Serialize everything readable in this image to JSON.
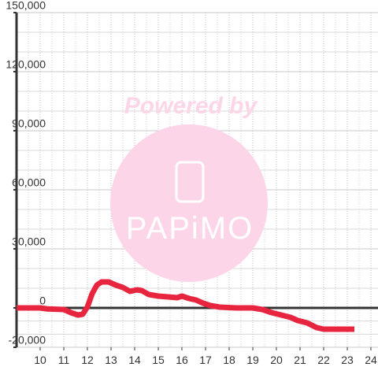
{
  "chart_data": {
    "type": "line",
    "watermark": {
      "top": "Powered by",
      "logo": "PAPiMO"
    },
    "xlim": [
      9,
      24.3
    ],
    "xticks": [
      10,
      11,
      12,
      13,
      14,
      15,
      16,
      17,
      18,
      19,
      20,
      21,
      22,
      23,
      24
    ],
    "ylim": [
      -20000,
      150000
    ],
    "yticks": [
      {
        "value": -20000,
        "label": "-20,000"
      },
      0,
      {
        "value": 30000,
        "label": "30,000"
      },
      {
        "value": 60000,
        "label": "60,000"
      },
      {
        "value": 90000,
        "label": "90,000"
      },
      {
        "value": 120000,
        "label": "120,000"
      },
      {
        "value": 150000,
        "label": "150,000"
      }
    ],
    "grid": true,
    "series": [
      {
        "color": "#e8253f",
        "x": [
          9.0,
          10.0,
          10.3,
          11.0,
          11.3,
          11.6,
          11.8,
          12.0,
          12.2,
          12.4,
          12.6,
          12.9,
          13.2,
          13.5,
          13.8,
          14.1,
          14.3,
          14.6,
          15.0,
          15.4,
          15.8,
          16.0,
          16.3,
          16.6,
          16.9,
          17.2,
          17.6,
          18.3,
          19.0,
          19.4,
          19.8,
          20.2,
          20.6,
          20.9,
          21.3,
          21.7,
          22.0,
          23.3
        ],
        "values": [
          0,
          0,
          -500,
          -800,
          -2400,
          -3600,
          -3200,
          500,
          7200,
          11600,
          13200,
          13200,
          11600,
          10400,
          8400,
          9200,
          8800,
          6800,
          6000,
          5600,
          5200,
          6000,
          4800,
          4000,
          2400,
          1200,
          400,
          0,
          0,
          -800,
          -2400,
          -3600,
          -4800,
          -6400,
          -7600,
          -10000,
          -10800,
          -10800
        ]
      }
    ]
  }
}
